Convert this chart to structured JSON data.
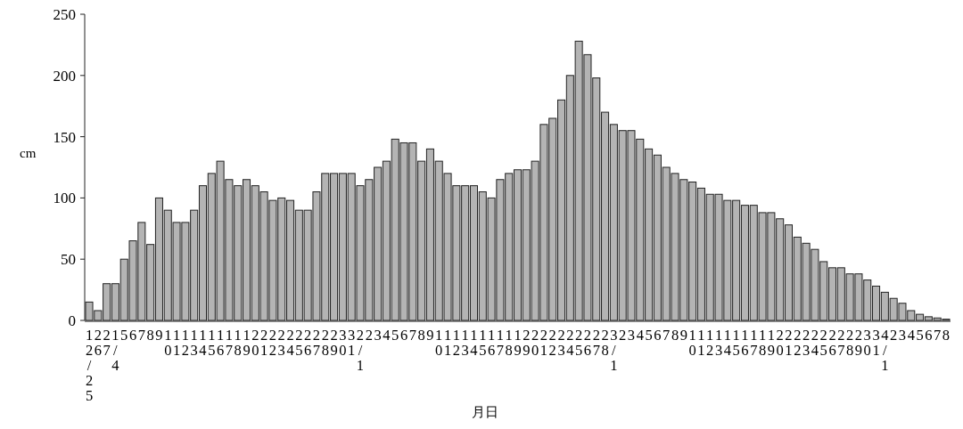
{
  "chart_data": {
    "type": "bar",
    "xlabel": "月日",
    "ylabel": "cm",
    "categories": [
      "12/25",
      "26",
      "27",
      "1/4",
      "5",
      "6",
      "7",
      "8",
      "9",
      "10",
      "11",
      "12",
      "13",
      "14",
      "15",
      "16",
      "17",
      "18",
      "19",
      "20",
      "21",
      "22",
      "23",
      "24",
      "25",
      "26",
      "27",
      "28",
      "29",
      "30",
      "31",
      "2/1",
      "2",
      "3",
      "4",
      "5",
      "6",
      "7",
      "8",
      "9",
      "10",
      "11",
      "12",
      "13",
      "14",
      "15",
      "16",
      "17",
      "18",
      "19",
      "29",
      "20",
      "21",
      "22",
      "23",
      "24",
      "25",
      "26",
      "27",
      "28",
      "3/1",
      "2",
      "3",
      "4",
      "5",
      "6",
      "7",
      "8",
      "9",
      "10",
      "11",
      "12",
      "13",
      "14",
      "15",
      "16",
      "17",
      "18",
      "19",
      "20",
      "21",
      "22",
      "23",
      "24",
      "25",
      "26",
      "27",
      "28",
      "29",
      "30",
      "31",
      "4/1",
      "2",
      "3",
      "4",
      "5",
      "6",
      "7",
      "8"
    ],
    "values": [
      15,
      8,
      30,
      30,
      50,
      65,
      80,
      62,
      100,
      90,
      80,
      80,
      90,
      110,
      120,
      130,
      115,
      110,
      115,
      110,
      105,
      98,
      100,
      98,
      90,
      90,
      105,
      120,
      120,
      120,
      120,
      110,
      115,
      125,
      130,
      148,
      145,
      145,
      130,
      140,
      130,
      120,
      110,
      110,
      110,
      105,
      100,
      115,
      120,
      123,
      123,
      130,
      160,
      165,
      180,
      200,
      228,
      217,
      198,
      170,
      160,
      155,
      155,
      148,
      140,
      135,
      125,
      120,
      115,
      113,
      108,
      103,
      103,
      98,
      98,
      94,
      94,
      88,
      88,
      83,
      78,
      68,
      63,
      58,
      48,
      43,
      43,
      38,
      38,
      33,
      28,
      23,
      18,
      14,
      8,
      5,
      3,
      2,
      1
    ],
    "color": "#b4b4b4",
    "ylim": [
      0,
      250
    ],
    "yticks": [
      0,
      50,
      100,
      150,
      200,
      250
    ],
    "grid": false
  }
}
